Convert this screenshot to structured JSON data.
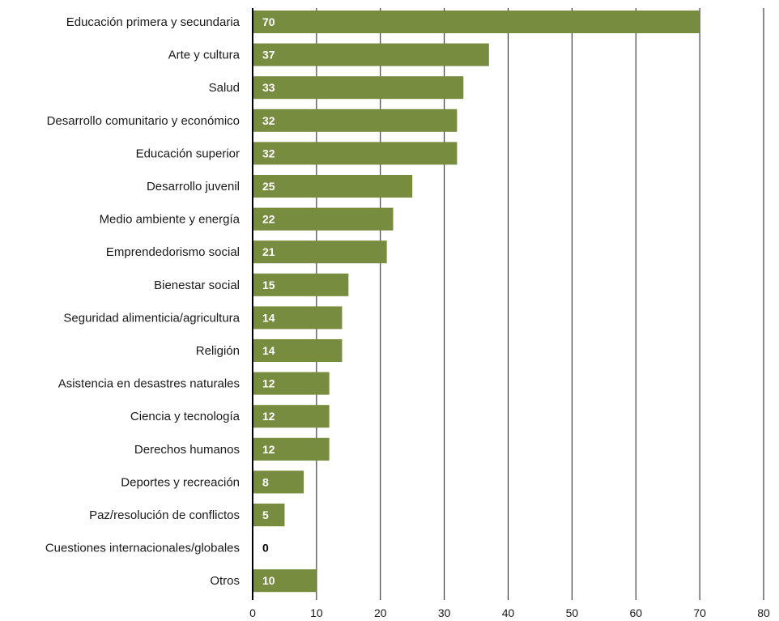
{
  "chart_data": {
    "type": "bar",
    "orientation": "horizontal",
    "categories": [
      "Educación primera y secundaria",
      "Arte y cultura",
      "Salud",
      "Desarrollo comunitario y económico",
      "Educación superior",
      "Desarrollo juvenil",
      "Medio ambiente y energía",
      "Emprendedorismo social",
      "Bienestar social",
      "Seguridad alimenticia/agricultura",
      "Religión",
      "Asistencia en desastres naturales",
      "Ciencia y tecnología",
      "Derechos humanos",
      "Deportes y recreación",
      "Paz/resolución de conflictos",
      "Cuestiones internacionales/globales",
      "Otros"
    ],
    "values": [
      70,
      37,
      33,
      32,
      32,
      25,
      22,
      21,
      15,
      14,
      14,
      12,
      12,
      12,
      8,
      5,
      0,
      10
    ],
    "data_labels": [
      "70",
      "37",
      "33",
      "32",
      "32",
      "25",
      "22",
      "21",
      "15",
      "14",
      "14",
      "12",
      "12",
      "12",
      "8",
      "5",
      "0",
      "10"
    ],
    "xlim": [
      0,
      80
    ],
    "xticks": [
      0,
      10,
      20,
      30,
      40,
      50,
      60,
      70,
      80
    ],
    "xtick_labels": [
      "0",
      "10",
      "20",
      "30",
      "40",
      "50",
      "60",
      "70",
      "80"
    ],
    "grid": "vertical",
    "legend": "none",
    "title": "",
    "xlabel": "",
    "ylabel": "",
    "colors": {
      "bar": "#778c3f",
      "label_on_bar": "#ffffff",
      "label_outside": "#000000",
      "grid": "#1a1a1a",
      "text": "#1a1a1a"
    }
  }
}
